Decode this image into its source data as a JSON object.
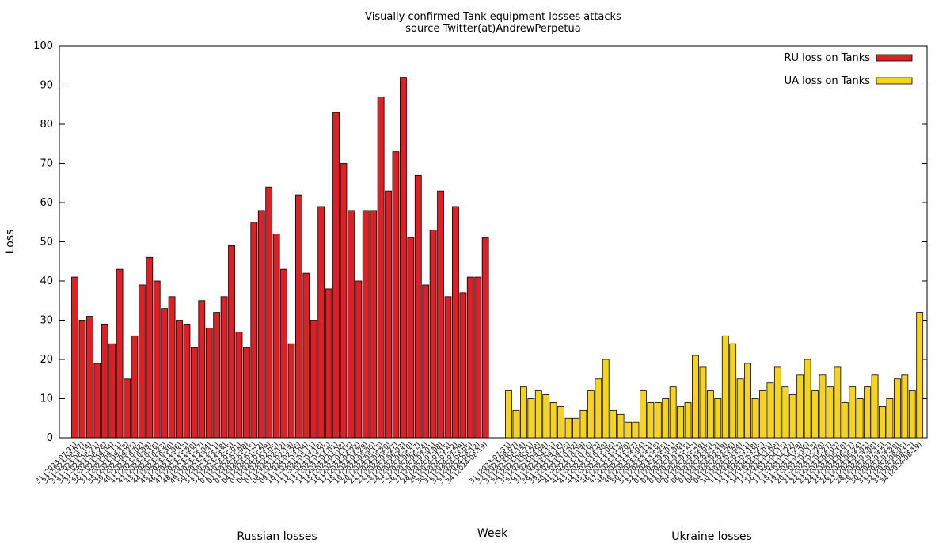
{
  "chart_data": {
    "type": "bar",
    "title": "Visually confirmed Tank equipment losses attacks",
    "subtitle": "source Twitter(at)AndrewPerpetua",
    "xlabel": "Week",
    "ylabel": "Loss",
    "ylim": [
      0,
      100
    ],
    "yticks": [
      0,
      10,
      20,
      30,
      40,
      50,
      60,
      70,
      80,
      90,
      100
    ],
    "grid": false,
    "legend_position": "top-right",
    "group_labels": [
      "Russian losses",
      "Ukraine losses"
    ],
    "categories": [
      "31 (2023-07-31)",
      "32 (2023-08-07)",
      "33 (2023-08-14)",
      "34 (2023-08-21)",
      "35 (2023-08-28)",
      "36 (2023-09-04)",
      "37 (2023-09-11)",
      "38 (2023-09-18)",
      "39 (2023-09-25)",
      "40 (2023-10-02)",
      "41 (2023-10-09)",
      "42 (2023-10-16)",
      "43 (2023-10-23)",
      "44 (2023-10-30)",
      "45 (2023-11-06)",
      "46 (2023-11-13)",
      "47 (2023-11-20)",
      "48 (2023-11-27)",
      "49 (2023-12-04)",
      "50 (2023-12-11)",
      "51 (2023-12-18)",
      "52 (2023-12-25)",
      "01 (2024-01-01)",
      "02 (2024-01-08)",
      "03 (2024-01-15)",
      "04 (2024-01-22)",
      "05 (2024-01-29)",
      "06 (2024-02-05)",
      "07 (2024-02-12)",
      "08 (2024-02-19)",
      "09 (2024-02-26)",
      "10 (2024-03-04)",
      "11 (2024-03-11)",
      "12 (2024-03-18)",
      "13 (2024-03-25)",
      "14 (2024-04-01)",
      "15 (2024-04-08)",
      "16 (2024-04-15)",
      "17 (2024-04-22)",
      "18 (2024-04-29)",
      "19 (2024-05-06)",
      "20 (2024-05-13)",
      "21 (2024-05-20)",
      "22 (2024-05-27)",
      "23 (2024-06-03)",
      "24 (2024-06-10)",
      "25 (2024-06-17)",
      "26 (2024-06-24)",
      "27 (2024-07-01)",
      "28 (2024-07-08)",
      "29 (2024-07-15)",
      "30 (2024-07-22)",
      "31 (2024-07-29)",
      "32 (2024-08-05)",
      "33 (2024-08-12)",
      "34 (2024-08-19)"
    ],
    "series": [
      {
        "name": "RU loss on Tanks",
        "color": "#dd1f26",
        "values": [
          41,
          30,
          31,
          19,
          29,
          24,
          43,
          15,
          26,
          39,
          46,
          40,
          33,
          36,
          30,
          29,
          23,
          35,
          28,
          32,
          36,
          49,
          27,
          23,
          55,
          58,
          64,
          52,
          43,
          24,
          62,
          42,
          30,
          59,
          38,
          83,
          70,
          58,
          40,
          58,
          58,
          87,
          63,
          73,
          92,
          51,
          67,
          39,
          53,
          63,
          36,
          59,
          37,
          41,
          41,
          51
        ]
      },
      {
        "name": "UA loss on Tanks",
        "color": "#f7d41c",
        "values": [
          12,
          7,
          13,
          10,
          12,
          11,
          9,
          8,
          5,
          5,
          7,
          12,
          15,
          20,
          7,
          6,
          4,
          4,
          12,
          9,
          9,
          10,
          13,
          8,
          9,
          21,
          18,
          12,
          10,
          26,
          24,
          15,
          19,
          10,
          12,
          14,
          18,
          13,
          11,
          16,
          20,
          12,
          16,
          13,
          18,
          9,
          13,
          10,
          13,
          16,
          8,
          10,
          15,
          16,
          12,
          32
        ]
      }
    ]
  }
}
